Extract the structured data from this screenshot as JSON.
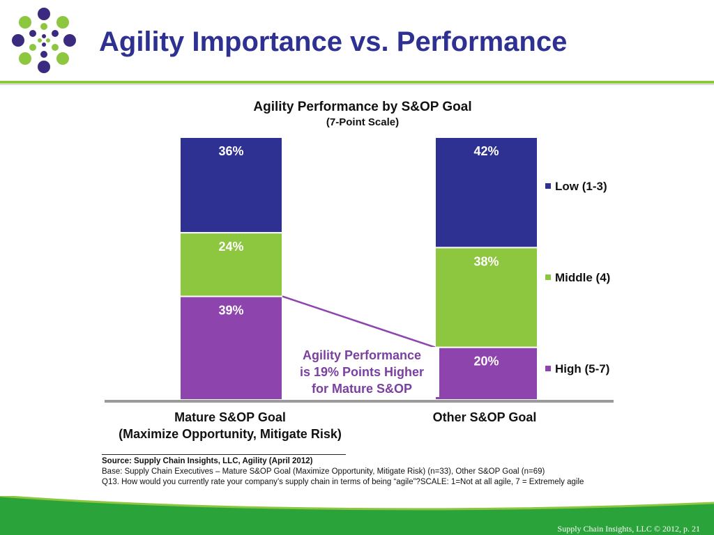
{
  "title": "Agility Importance vs. Performance",
  "colors": {
    "title": "#2e3192",
    "low": "#2e3192",
    "middle": "#8dc63f",
    "high": "#8e44ad",
    "accent_green": "#8dc63f",
    "footer_green": "#2aa33a"
  },
  "chart_data": {
    "type": "bar",
    "stacked": true,
    "title": "Agility Performance by S&OP Goal",
    "subtitle": "(7-Point Scale)",
    "categories": [
      [
        "Mature S&OP Goal",
        "(Maximize Opportunity, Mitigate Risk)"
      ],
      [
        "Other S&OP Goal"
      ]
    ],
    "series": [
      {
        "name": "High (5-7)",
        "values": [
          39,
          20
        ],
        "labels": [
          "39%",
          "20%"
        ]
      },
      {
        "name": "Middle (4)",
        "values": [
          24,
          38
        ],
        "labels": [
          "24%",
          "38%"
        ]
      },
      {
        "name": "Low (1-3)",
        "values": [
          36,
          42
        ],
        "labels": [
          "36%",
          "42%"
        ]
      }
    ],
    "legend": [
      "Low (1-3)",
      "Middle (4)",
      "High (5-7)"
    ],
    "legend_placement": "right",
    "annotation": [
      "Agility Performance",
      "is 19% Points Higher",
      "for Mature S&OP"
    ]
  },
  "notes": {
    "source": "Source:  Supply Chain Insights, LLC, Agility (April 2012)",
    "base": "Base:  Supply Chain Executives – Mature S&OP Goal (Maximize Opportunity, Mitigate Risk) (n=33), Other S&OP Goal (n=69)",
    "question": "Q13. How would you currently rate your company’s supply chain in terms of being “agile”?SCALE:  1=Not at all agile, 7 = Extremely agile"
  },
  "footer": "Supply Chain Insights, LLC © 2012, p. 21"
}
